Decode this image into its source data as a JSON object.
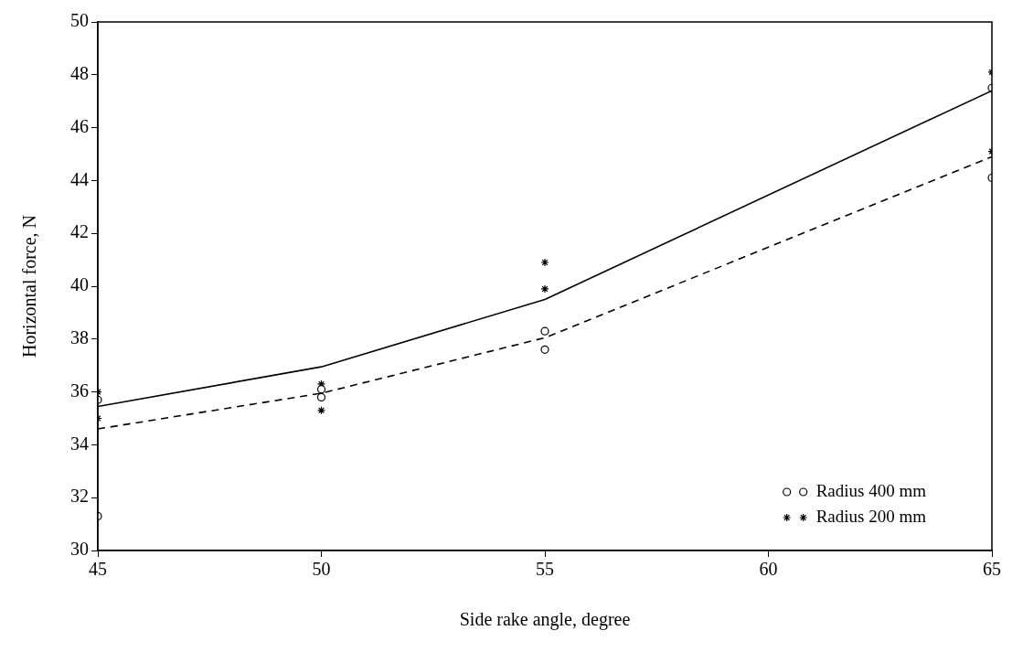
{
  "chart_data": {
    "type": "line",
    "xlabel": "Side rake angle, degree",
    "ylabel": "Horizontal force, N",
    "xlim": [
      45,
      65
    ],
    "xticks": [
      45,
      50,
      55,
      60,
      65
    ],
    "ylim": [
      30,
      50
    ],
    "yticks": [
      30,
      32,
      34,
      36,
      38,
      40,
      42,
      44,
      46,
      48,
      50
    ],
    "grid": false,
    "legend": "bottom right",
    "series": [
      {
        "type": "line",
        "x": [
          45,
          50,
          55,
          65
        ],
        "values": [
          35.45,
          36.95,
          39.5,
          47.4
        ],
        "color": "#000000",
        "line_style": "solid",
        "marker": "none"
      },
      {
        "type": "line",
        "x": [
          45,
          50,
          55,
          65
        ],
        "values": [
          34.6,
          35.95,
          38.05,
          44.9
        ],
        "color": "#000000",
        "line_style": "dashed",
        "marker": "none"
      },
      {
        "type": "scatter",
        "name": "Radius 400 mm",
        "x": [
          45,
          45,
          50,
          50,
          55,
          55,
          65,
          65
        ],
        "values": [
          35.7,
          31.3,
          36.1,
          35.8,
          38.3,
          37.6,
          47.5,
          44.1
        ],
        "color": "#000000",
        "marker": "circle"
      },
      {
        "type": "scatter",
        "name": "Radius 200 mm",
        "x": [
          45,
          45,
          50,
          50,
          55,
          55,
          65,
          65
        ],
        "values": [
          36.0,
          35.0,
          36.3,
          35.3,
          40.9,
          39.9,
          48.1,
          45.1
        ],
        "color": "#000000",
        "marker": "cross"
      }
    ]
  }
}
